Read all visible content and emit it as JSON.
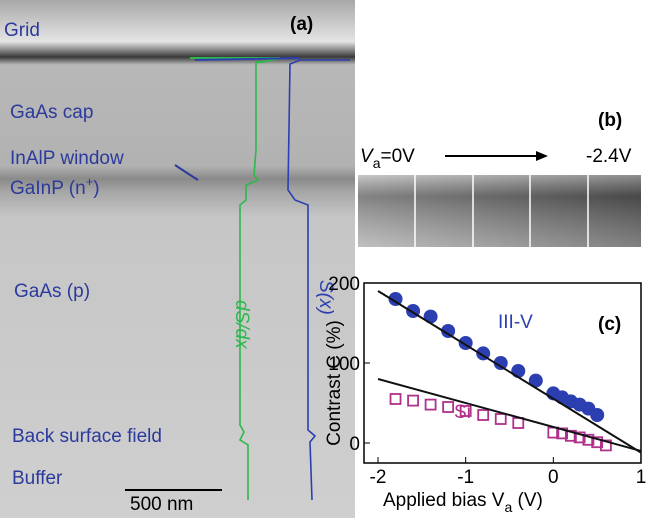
{
  "panel_a": {
    "tag": "(a)",
    "layers": [
      "Grid",
      "GaAs cap",
      "InAlP window",
      "GaInP (n",
      "GaAs (p)",
      "Back surface field",
      "Buffer"
    ],
    "layer_sup": "+",
    "layer_end": ")",
    "scale_bar": "500 nm",
    "curve_green": "dS/dx",
    "curve_blue": "S(x)"
  },
  "panel_b": {
    "tag": "(b)",
    "start_v": "V",
    "start_sub": "a",
    "start_end": "=0V",
    "stop": "-2.4V"
  },
  "chart_data": {
    "type": "scatter",
    "tag": "(c)",
    "ylabel": "Contrast C (%)",
    "xlabel": {
      "text": "Applied bias V",
      "sub": "a",
      "end": " (V)"
    },
    "xlim": [
      -2,
      1
    ],
    "xticks": [
      -2,
      -1,
      0,
      1
    ],
    "ylim": [
      -25,
      200
    ],
    "yticks": [
      0,
      100,
      200
    ],
    "series": [
      {
        "name": "III-V",
        "color": "#2b3fb0",
        "marker": "circle",
        "x": [
          -1.8,
          -1.6,
          -1.4,
          -1.2,
          -1.0,
          -0.8,
          -0.6,
          -0.4,
          -0.2,
          0,
          0.1,
          0.2,
          0.3,
          0.4,
          0.5
        ],
        "values": [
          180,
          165,
          158,
          140,
          125,
          112,
          100,
          90,
          78,
          62,
          57,
          52,
          48,
          43,
          35
        ]
      },
      {
        "name": "Si",
        "color": "#b0308c",
        "marker": "square",
        "x": [
          -1.8,
          -1.6,
          -1.4,
          -1.2,
          -1.0,
          -0.8,
          -0.6,
          -0.4,
          0,
          0.1,
          0.2,
          0.3,
          0.4,
          0.5,
          0.6
        ],
        "values": [
          55,
          53,
          48,
          45,
          40,
          35,
          30,
          25,
          13,
          12,
          9,
          7,
          4,
          1,
          -3
        ]
      },
      {
        "color": "#111111",
        "marker": "line",
        "x": [
          -2,
          1
        ],
        "values": [
          190,
          -12
        ]
      },
      {
        "color": "#111111",
        "marker": "line",
        "x": [
          -2,
          1
        ],
        "values": [
          80,
          -10
        ]
      }
    ]
  }
}
